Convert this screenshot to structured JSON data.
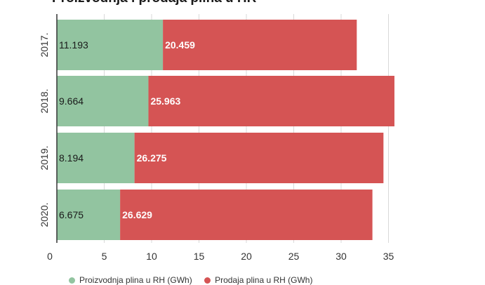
{
  "title": "Proizvodnja i prodaja plina u HR",
  "legend": [
    {
      "label": "Proizvodnja plina u RH (GWh)",
      "color": "#92c4a0"
    },
    {
      "label": "Prodaja plina u RH (GWh)",
      "color": "#d55454"
    }
  ],
  "chart_data": {
    "type": "bar",
    "orientation": "horizontal",
    "stacked": true,
    "title": "Proizvodnja i prodaja plina u HR",
    "categories": [
      "2017.",
      "2018.",
      "2019.",
      "2020."
    ],
    "series": [
      {
        "name": "Proizvodnja plina u RH (GWh)",
        "color": "#92c4a0",
        "values": [
          11.193,
          9.664,
          8.194,
          6.675
        ],
        "labels": [
          "11.193",
          "9.664",
          "8.194",
          "6.675"
        ]
      },
      {
        "name": "Prodaja plina u RH (GWh)",
        "color": "#d55454",
        "values": [
          20.459,
          25.963,
          26.275,
          26.629
        ],
        "labels": [
          "20.459",
          "25.963",
          "26.275",
          "26.629"
        ]
      }
    ],
    "xticks": [
      0,
      5,
      10,
      15,
      20,
      25,
      30,
      35
    ],
    "xlim": [
      0,
      36
    ],
    "grid": true,
    "legend_position": "bottom"
  }
}
